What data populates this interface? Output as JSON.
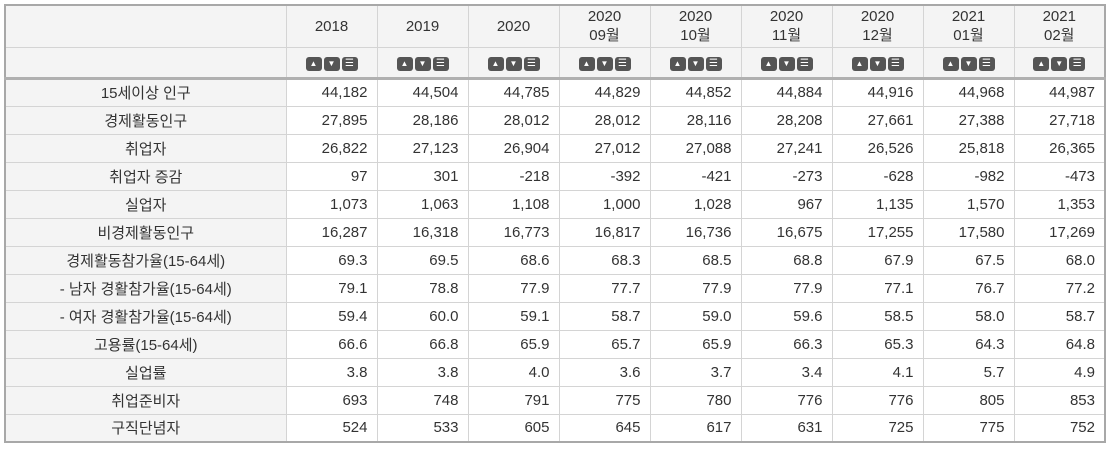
{
  "table": {
    "columns": [
      {
        "line1": "2018",
        "line2": ""
      },
      {
        "line1": "2019",
        "line2": ""
      },
      {
        "line1": "2020",
        "line2": ""
      },
      {
        "line1": "2020",
        "line2": "09월"
      },
      {
        "line1": "2020",
        "line2": "10월"
      },
      {
        "line1": "2020",
        "line2": "11월"
      },
      {
        "line1": "2020",
        "line2": "12월"
      },
      {
        "line1": "2021",
        "line2": "01월"
      },
      {
        "line1": "2021",
        "line2": "02월"
      }
    ],
    "sort_icons": {
      "asc": "▲",
      "desc": "▼",
      "menu": "☰"
    },
    "rows": [
      {
        "label": "15세이상 인구",
        "values": [
          "44,182",
          "44,504",
          "44,785",
          "44,829",
          "44,852",
          "44,884",
          "44,916",
          "44,968",
          "44,987"
        ]
      },
      {
        "label": "경제활동인구",
        "values": [
          "27,895",
          "28,186",
          "28,012",
          "28,012",
          "28,116",
          "28,208",
          "27,661",
          "27,388",
          "27,718"
        ]
      },
      {
        "label": "취업자",
        "values": [
          "26,822",
          "27,123",
          "26,904",
          "27,012",
          "27,088",
          "27,241",
          "26,526",
          "25,818",
          "26,365"
        ]
      },
      {
        "label": "취업자 증감",
        "values": [
          "97",
          "301",
          "-218",
          "-392",
          "-421",
          "-273",
          "-628",
          "-982",
          "-473"
        ]
      },
      {
        "label": "실업자",
        "values": [
          "1,073",
          "1,063",
          "1,108",
          "1,000",
          "1,028",
          "967",
          "1,135",
          "1,570",
          "1,353"
        ]
      },
      {
        "label": "비경제활동인구",
        "values": [
          "16,287",
          "16,318",
          "16,773",
          "16,817",
          "16,736",
          "16,675",
          "17,255",
          "17,580",
          "17,269"
        ]
      },
      {
        "label": "경제활동참가율(15-64세)",
        "values": [
          "69.3",
          "69.5",
          "68.6",
          "68.3",
          "68.5",
          "68.8",
          "67.9",
          "67.5",
          "68.0"
        ]
      },
      {
        "label": "- 남자 경활참가율(15-64세)",
        "values": [
          "79.1",
          "78.8",
          "77.9",
          "77.7",
          "77.9",
          "77.9",
          "77.1",
          "76.7",
          "77.2"
        ]
      },
      {
        "label": "- 여자 경활참가율(15-64세)",
        "values": [
          "59.4",
          "60.0",
          "59.1",
          "58.7",
          "59.0",
          "59.6",
          "58.5",
          "58.0",
          "58.7"
        ]
      },
      {
        "label": "고용률(15-64세)",
        "values": [
          "66.6",
          "66.8",
          "65.9",
          "65.7",
          "65.9",
          "66.3",
          "65.3",
          "64.3",
          "64.8"
        ]
      },
      {
        "label": "실업률",
        "values": [
          "3.8",
          "3.8",
          "4.0",
          "3.6",
          "3.7",
          "3.4",
          "4.1",
          "5.7",
          "4.9"
        ]
      },
      {
        "label": "취업준비자",
        "values": [
          "693",
          "748",
          "791",
          "775",
          "780",
          "776",
          "776",
          "805",
          "853"
        ]
      },
      {
        "label": "구직단념자",
        "values": [
          "524",
          "533",
          "605",
          "645",
          "617",
          "631",
          "725",
          "775",
          "752"
        ]
      }
    ],
    "colors": {
      "header_bg": "#f4f4f4",
      "label_bg": "#f4f4f4",
      "cell_bg": "#ffffff",
      "outer_border": "#a8a8a8",
      "separator_border": "#b0b0b0",
      "inner_border": "#d4d4d4",
      "icon_bg": "#555555",
      "icon_fg": "#ffffff",
      "text": "#333333"
    }
  }
}
